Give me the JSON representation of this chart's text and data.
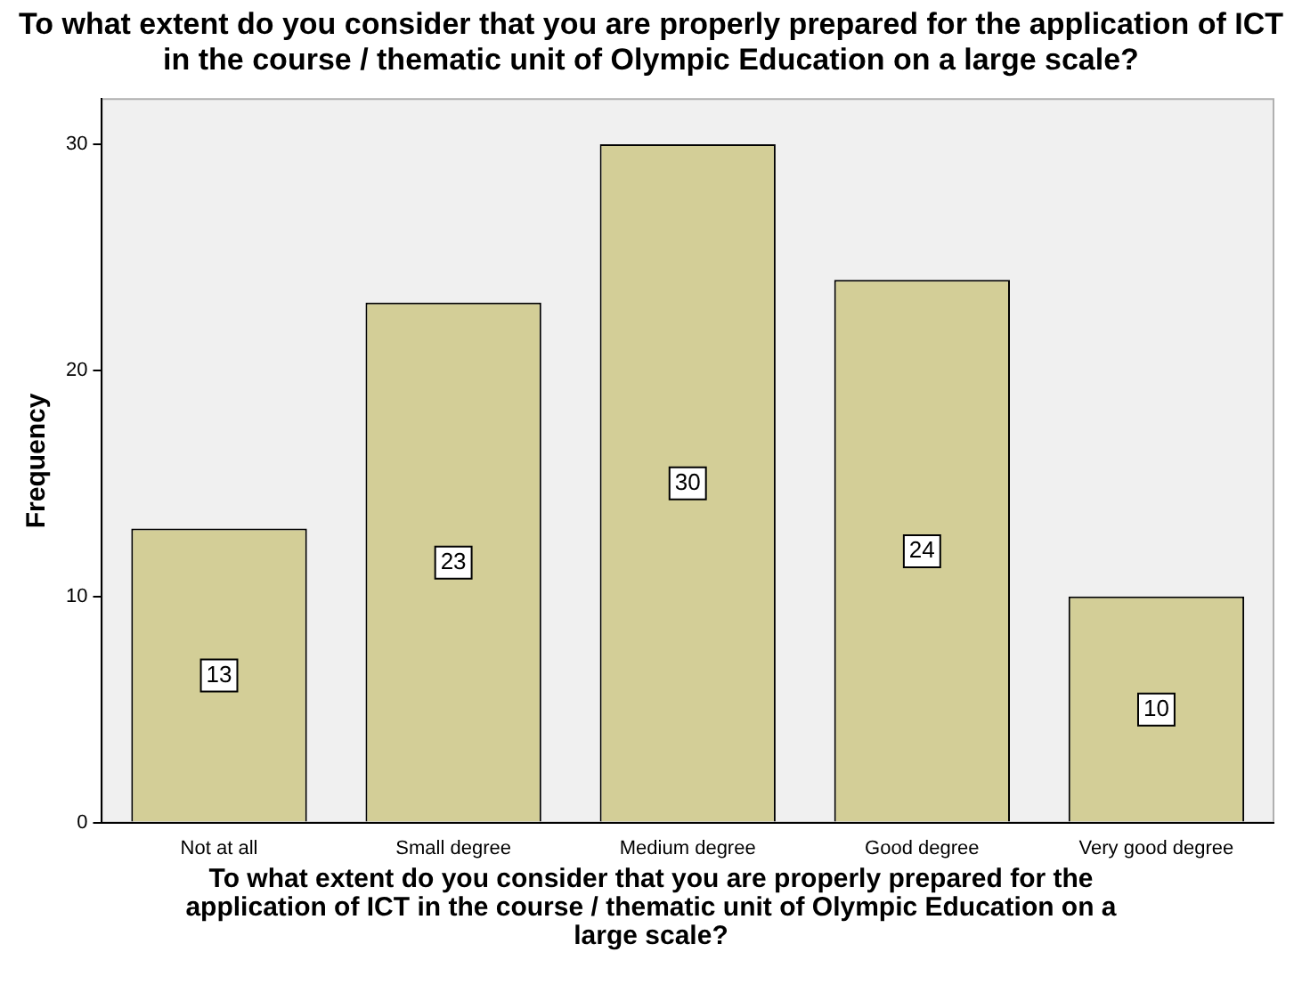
{
  "chart_data": {
    "type": "bar",
    "title": "To what extent do you consider that you are properly prepared for the application of ICT in the course / thematic unit of Olympic Education on a large scale?",
    "xlabel": "To what extent do you consider that you are properly prepared for the application of ICT in the course / thematic unit of Olympic Education on a large scale?",
    "ylabel": "Frequency",
    "categories": [
      "Not at all",
      "Small degree",
      "Medium degree",
      "Good degree",
      "Very good degree"
    ],
    "values": [
      13,
      23,
      30,
      24,
      10
    ],
    "color": "#d3ce97",
    "ylim": [
      0,
      32
    ],
    "yticks": [
      0,
      10,
      20,
      30
    ],
    "grid": false,
    "legend": false,
    "data_labels": true
  }
}
